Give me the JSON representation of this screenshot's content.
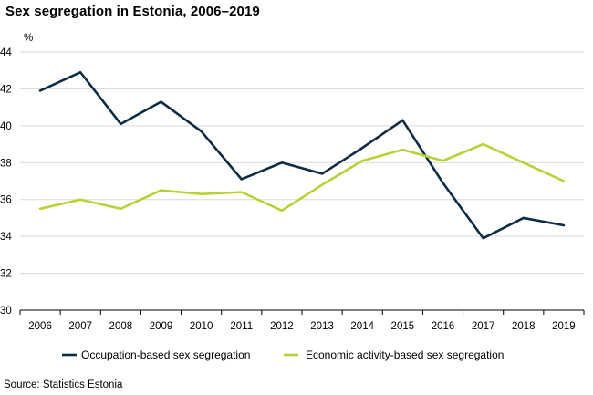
{
  "chart_data": {
    "type": "line",
    "title": "Sex segregation in Estonia, 2006–2019",
    "y_unit_label": "%",
    "xlabel": "",
    "ylabel": "",
    "categories": [
      "2006",
      "2007",
      "2008",
      "2009",
      "2010",
      "2011",
      "2012",
      "2013",
      "2014",
      "2015",
      "2016",
      "2017",
      "2018",
      "2019"
    ],
    "ylim": [
      30,
      44
    ],
    "yticks": [
      30,
      32,
      34,
      36,
      38,
      40,
      42,
      44
    ],
    "grid": "horizontal",
    "legend_position": "bottom",
    "series": [
      {
        "name": "Occupation-based sex segregation",
        "color": "#0d2b45",
        "values": [
          41.9,
          42.9,
          40.1,
          41.3,
          39.7,
          37.1,
          38.0,
          37.4,
          38.8,
          40.3,
          36.9,
          33.9,
          35.0,
          34.6
        ]
      },
      {
        "name": "Economic activity-based sex segregation",
        "color": "#b5d334",
        "values": [
          35.5,
          36.0,
          35.5,
          36.5,
          36.3,
          36.4,
          35.4,
          36.8,
          38.1,
          38.7,
          38.1,
          39.0,
          38.0,
          37.0
        ]
      }
    ],
    "source": "Source: Statistics Estonia"
  }
}
